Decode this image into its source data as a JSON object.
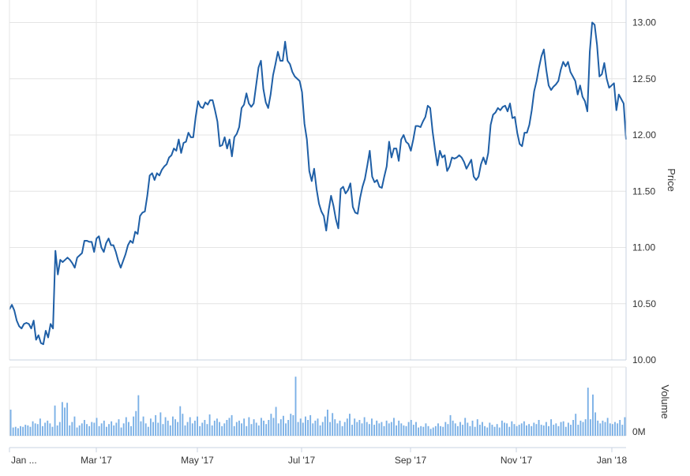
{
  "chart_data": {
    "type": "line",
    "colors": {
      "line": "#1f5fa6",
      "volume": "#7ab0e6",
      "grid": "#e4e4e4",
      "axis": "#c8d3e0"
    },
    "price_axis": {
      "label": "Price",
      "ylim": [
        10.0,
        13.2
      ],
      "ticks": [
        {
          "value": 10.0,
          "label": "10.00"
        },
        {
          "value": 10.5,
          "label": "10.50"
        },
        {
          "value": 11.0,
          "label": "11.00"
        },
        {
          "value": 11.5,
          "label": "11.50"
        },
        {
          "value": 12.0,
          "label": "12.00"
        },
        {
          "value": 12.5,
          "label": "12.50"
        },
        {
          "value": 13.0,
          "label": "13.00"
        }
      ]
    },
    "volume_axis": {
      "label": "Volume",
      "tick_label": "0M"
    },
    "x_ticks": [
      "Jan ...",
      "Mar '17",
      "May '17",
      "Jul '17",
      "Sep '17",
      "Nov '17",
      "Jan '18"
    ],
    "grid": true,
    "series": [
      {
        "values": [
          10.45,
          10.49,
          10.44,
          10.35,
          10.3,
          10.28,
          10.32,
          10.33,
          10.32,
          10.28,
          10.35,
          10.18,
          10.22,
          10.15,
          10.14,
          10.26,
          10.2,
          10.32,
          10.28,
          10.97,
          10.76,
          10.89,
          10.87,
          10.89,
          10.91,
          10.89,
          10.86,
          10.82,
          10.91,
          10.93,
          10.95,
          11.06,
          11.06,
          11.05,
          11.05,
          10.96,
          11.08,
          11.1,
          11.0,
          10.96,
          11.04,
          11.08,
          11.02,
          11.02,
          10.96,
          10.88,
          10.82,
          10.88,
          10.94,
          11.02,
          11.06,
          11.04,
          11.14,
          11.12,
          11.28,
          11.31,
          11.32,
          11.46,
          11.64,
          11.66,
          11.6,
          11.66,
          11.64,
          11.69,
          11.72,
          11.74,
          11.8,
          11.82,
          11.88,
          11.86,
          11.96,
          11.84,
          11.93,
          11.94,
          12.02,
          11.98,
          11.98,
          12.16,
          12.3,
          12.25,
          12.24,
          12.29,
          12.27,
          12.31,
          12.31,
          12.22,
          12.12,
          11.9,
          11.91,
          11.98,
          11.88,
          11.96,
          11.81,
          11.98,
          12.01,
          12.07,
          12.24,
          12.27,
          12.37,
          12.28,
          12.25,
          12.28,
          12.44,
          12.6,
          12.66,
          12.41,
          12.29,
          12.24,
          12.36,
          12.53,
          12.63,
          12.74,
          12.66,
          12.66,
          12.83,
          12.66,
          12.63,
          12.56,
          12.52,
          12.5,
          12.48,
          12.38,
          12.1,
          11.96,
          11.68,
          11.59,
          11.7,
          11.52,
          11.39,
          11.32,
          11.28,
          11.15,
          11.33,
          11.46,
          11.37,
          11.25,
          11.17,
          11.52,
          11.54,
          11.48,
          11.51,
          11.57,
          11.36,
          11.31,
          11.3,
          11.44,
          11.54,
          11.61,
          11.73,
          11.86,
          11.63,
          11.58,
          11.6,
          11.54,
          11.53,
          11.63,
          11.72,
          11.94,
          11.8,
          11.88,
          11.88,
          11.77,
          11.96,
          12.0,
          11.94,
          11.92,
          11.86,
          11.96,
          12.08,
          12.08,
          12.07,
          12.12,
          12.16,
          12.26,
          12.24,
          12.03,
          11.87,
          11.73,
          11.86,
          11.8,
          11.82,
          11.68,
          11.72,
          11.8,
          11.79,
          11.8,
          11.82,
          11.8,
          11.76,
          11.7,
          11.74,
          11.78,
          11.63,
          11.6,
          11.63,
          11.74,
          11.8,
          11.74,
          11.84,
          12.09,
          12.18,
          12.2,
          12.24,
          12.22,
          12.25,
          12.26,
          12.21,
          12.28,
          12.15,
          12.16,
          12.02,
          11.92,
          11.9,
          12.02,
          12.02,
          12.09,
          12.22,
          12.39,
          12.48,
          12.6,
          12.7,
          12.76,
          12.58,
          12.44,
          12.4,
          12.43,
          12.45,
          12.48,
          12.58,
          12.65,
          12.61,
          12.65,
          12.56,
          12.52,
          12.48,
          12.36,
          12.44,
          12.34,
          12.3,
          12.21,
          12.74,
          13.0,
          12.98,
          12.8,
          12.52,
          12.54,
          12.64,
          12.5,
          12.42,
          12.44,
          12.46,
          12.22,
          12.36,
          12.32,
          12.28,
          11.96
        ]
      }
    ],
    "volume": [
      0.38,
      0.12,
      0.13,
      0.11,
      0.14,
      0.13,
      0.16,
      0.15,
      0.13,
      0.21,
      0.18,
      0.17,
      0.25,
      0.14,
      0.19,
      0.22,
      0.18,
      0.13,
      0.44,
      0.15,
      0.2,
      0.49,
      0.41,
      0.48,
      0.15,
      0.2,
      0.28,
      0.12,
      0.15,
      0.18,
      0.23,
      0.17,
      0.14,
      0.2,
      0.19,
      0.26,
      0.14,
      0.18,
      0.22,
      0.13,
      0.17,
      0.21,
      0.15,
      0.19,
      0.24,
      0.12,
      0.18,
      0.27,
      0.2,
      0.14,
      0.28,
      0.36,
      0.59,
      0.21,
      0.28,
      0.18,
      0.13,
      0.25,
      0.2,
      0.3,
      0.19,
      0.34,
      0.17,
      0.27,
      0.22,
      0.15,
      0.28,
      0.24,
      0.2,
      0.43,
      0.32,
      0.15,
      0.2,
      0.27,
      0.18,
      0.22,
      0.28,
      0.14,
      0.19,
      0.23,
      0.17,
      0.31,
      0.15,
      0.22,
      0.25,
      0.2,
      0.14,
      0.18,
      0.23,
      0.26,
      0.3,
      0.14,
      0.2,
      0.22,
      0.18,
      0.25,
      0.14,
      0.27,
      0.17,
      0.24,
      0.19,
      0.15,
      0.26,
      0.22,
      0.17,
      0.23,
      0.32,
      0.26,
      0.42,
      0.18,
      0.24,
      0.29,
      0.18,
      0.23,
      0.32,
      0.3,
      0.86,
      0.2,
      0.25,
      0.19,
      0.28,
      0.23,
      0.3,
      0.18,
      0.22,
      0.25,
      0.15,
      0.2,
      0.28,
      0.38,
      0.2,
      0.33,
      0.24,
      0.18,
      0.22,
      0.14,
      0.2,
      0.25,
      0.32,
      0.16,
      0.25,
      0.2,
      0.23,
      0.18,
      0.27,
      0.2,
      0.17,
      0.25,
      0.16,
      0.22,
      0.18,
      0.2,
      0.14,
      0.22,
      0.18,
      0.2,
      0.26,
      0.15,
      0.22,
      0.18,
      0.15,
      0.14,
      0.2,
      0.23,
      0.16,
      0.2,
      0.12,
      0.14,
      0.13,
      0.18,
      0.14,
      0.1,
      0.12,
      0.14,
      0.18,
      0.14,
      0.13,
      0.2,
      0.17,
      0.3,
      0.22,
      0.18,
      0.14,
      0.2,
      0.16,
      0.26,
      0.19,
      0.14,
      0.22,
      0.13,
      0.24,
      0.16,
      0.2,
      0.14,
      0.12,
      0.19,
      0.16,
      0.13,
      0.17,
      0.12,
      0.22,
      0.19,
      0.18,
      0.13,
      0.21,
      0.17,
      0.14,
      0.16,
      0.18,
      0.21,
      0.15,
      0.17,
      0.14,
      0.19,
      0.17,
      0.23,
      0.16,
      0.15,
      0.2,
      0.14,
      0.24,
      0.16,
      0.18,
      0.14,
      0.2,
      0.21,
      0.13,
      0.19,
      0.16,
      0.23,
      0.32,
      0.16,
      0.22,
      0.2,
      0.24,
      0.7,
      0.24,
      0.6,
      0.34,
      0.22,
      0.18,
      0.22,
      0.2,
      0.26,
      0.18,
      0.17,
      0.2,
      0.18,
      0.23,
      0.16,
      0.27
    ],
    "ylim_volume": [
      0,
      1.0
    ]
  }
}
